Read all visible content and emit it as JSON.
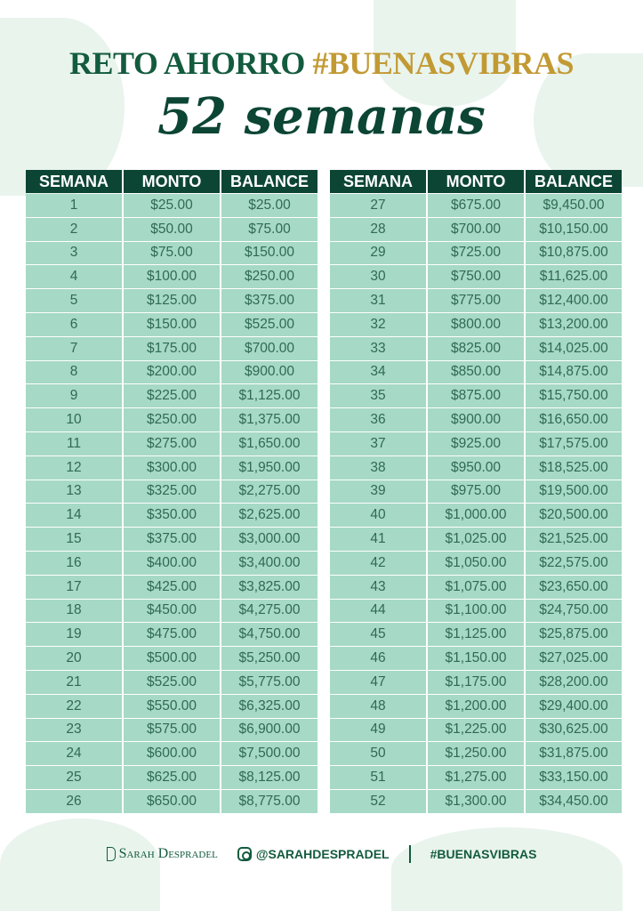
{
  "header": {
    "title_part1": "RETO AHORRO ",
    "title_part2": "#BUENASVIBRAS",
    "subtitle": "52 semanas"
  },
  "colors": {
    "dark_green": "#0c4534",
    "gold": "#c29a34",
    "row_bg": "#a6d9c6"
  },
  "table": {
    "columns": [
      "SEMANA",
      "MONTO",
      "BALANCE"
    ],
    "left_rows": [
      [
        "1",
        "$25.00",
        "$25.00"
      ],
      [
        "2",
        "$50.00",
        "$75.00"
      ],
      [
        "3",
        "$75.00",
        "$150.00"
      ],
      [
        "4",
        "$100.00",
        "$250.00"
      ],
      [
        "5",
        "$125.00",
        "$375.00"
      ],
      [
        "6",
        "$150.00",
        "$525.00"
      ],
      [
        "7",
        "$175.00",
        "$700.00"
      ],
      [
        "8",
        "$200.00",
        "$900.00"
      ],
      [
        "9",
        "$225.00",
        "$1,125.00"
      ],
      [
        "10",
        "$250.00",
        "$1,375.00"
      ],
      [
        "11",
        "$275.00",
        "$1,650.00"
      ],
      [
        "12",
        "$300.00",
        "$1,950.00"
      ],
      [
        "13",
        "$325.00",
        "$2,275.00"
      ],
      [
        "14",
        "$350.00",
        "$2,625.00"
      ],
      [
        "15",
        "$375.00",
        "$3,000.00"
      ],
      [
        "16",
        "$400.00",
        "$3,400.00"
      ],
      [
        "17",
        "$425.00",
        "$3,825.00"
      ],
      [
        "18",
        "$450.00",
        "$4,275.00"
      ],
      [
        "19",
        "$475.00",
        "$4,750.00"
      ],
      [
        "20",
        "$500.00",
        "$5,250.00"
      ],
      [
        "21",
        "$525.00",
        "$5,775.00"
      ],
      [
        "22",
        "$550.00",
        "$6,325.00"
      ],
      [
        "23",
        "$575.00",
        "$6,900.00"
      ],
      [
        "24",
        "$600.00",
        "$7,500.00"
      ],
      [
        "25",
        "$625.00",
        "$8,125.00"
      ],
      [
        "26",
        "$650.00",
        "$8,775.00"
      ]
    ],
    "right_rows": [
      [
        "27",
        "$675.00",
        "$9,450.00"
      ],
      [
        "28",
        "$700.00",
        "$10,150.00"
      ],
      [
        "29",
        "$725.00",
        "$10,875.00"
      ],
      [
        "30",
        "$750.00",
        "$11,625.00"
      ],
      [
        "31",
        "$775.00",
        "$12,400.00"
      ],
      [
        "32",
        "$800.00",
        "$13,200.00"
      ],
      [
        "33",
        "$825.00",
        "$14,025.00"
      ],
      [
        "34",
        "$850.00",
        "$14,875.00"
      ],
      [
        "35",
        "$875.00",
        "$15,750.00"
      ],
      [
        "36",
        "$900.00",
        "$16,650.00"
      ],
      [
        "37",
        "$925.00",
        "$17,575.00"
      ],
      [
        "38",
        "$950.00",
        "$18,525.00"
      ],
      [
        "39",
        "$975.00",
        "$19,500.00"
      ],
      [
        "40",
        "$1,000.00",
        "$20,500.00"
      ],
      [
        "41",
        "$1,025.00",
        "$21,525.00"
      ],
      [
        "42",
        "$1,050.00",
        "$22,575.00"
      ],
      [
        "43",
        "$1,075.00",
        "$23,650.00"
      ],
      [
        "44",
        "$1,100.00",
        "$24,750.00"
      ],
      [
        "45",
        "$1,125.00",
        "$25,875.00"
      ],
      [
        "46",
        "$1,150.00",
        "$27,025.00"
      ],
      [
        "47",
        "$1,175.00",
        "$28,200.00"
      ],
      [
        "48",
        "$1,200.00",
        "$29,400.00"
      ],
      [
        "49",
        "$1,225.00",
        "$30,625.00"
      ],
      [
        "50",
        "$1,250.00",
        "$31,875.00"
      ],
      [
        "51",
        "$1,275.00",
        "$33,150.00"
      ],
      [
        "52",
        "$1,300.00",
        "$34,450.00"
      ]
    ]
  },
  "footer": {
    "brand": "Sarah Despradel",
    "instagram_icon": "instagram-icon",
    "instagram": "@SARAHDESPRADEL",
    "hashtag": "#BUENASVIBRAS"
  }
}
